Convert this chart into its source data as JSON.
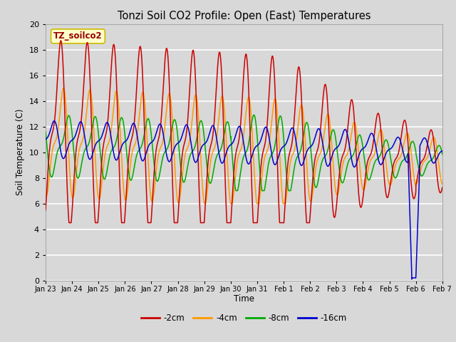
{
  "title": "Tonzi Soil CO2 Profile: Open (East) Temperatures",
  "ylabel": "Soil Temperature (C)",
  "xlabel": "Time",
  "annotation": "TZ_soilco2",
  "ylim": [
    0,
    20
  ],
  "series_labels": [
    "-2cm",
    "-4cm",
    "-8cm",
    "-16cm"
  ],
  "series_colors": [
    "#cc0000",
    "#ff9900",
    "#00aa00",
    "#0000cc"
  ],
  "bg_color": "#d8d8d8",
  "plot_bg_color": "#d8d8d8",
  "grid_color": "#ffffff",
  "figsize": [
    6.4,
    4.8
  ],
  "dpi": 100,
  "tick_labels": [
    "Jan 23",
    "Jan 24",
    "Jan 25",
    "Jan 26",
    "Jan 27",
    "Jan 28",
    "Jan 29",
    "Jan 30",
    "Jan 31",
    "Feb 1",
    "Feb 2",
    "Feb 3",
    "Feb 4",
    "Feb 5",
    "Feb 6",
    "Feb 7"
  ]
}
